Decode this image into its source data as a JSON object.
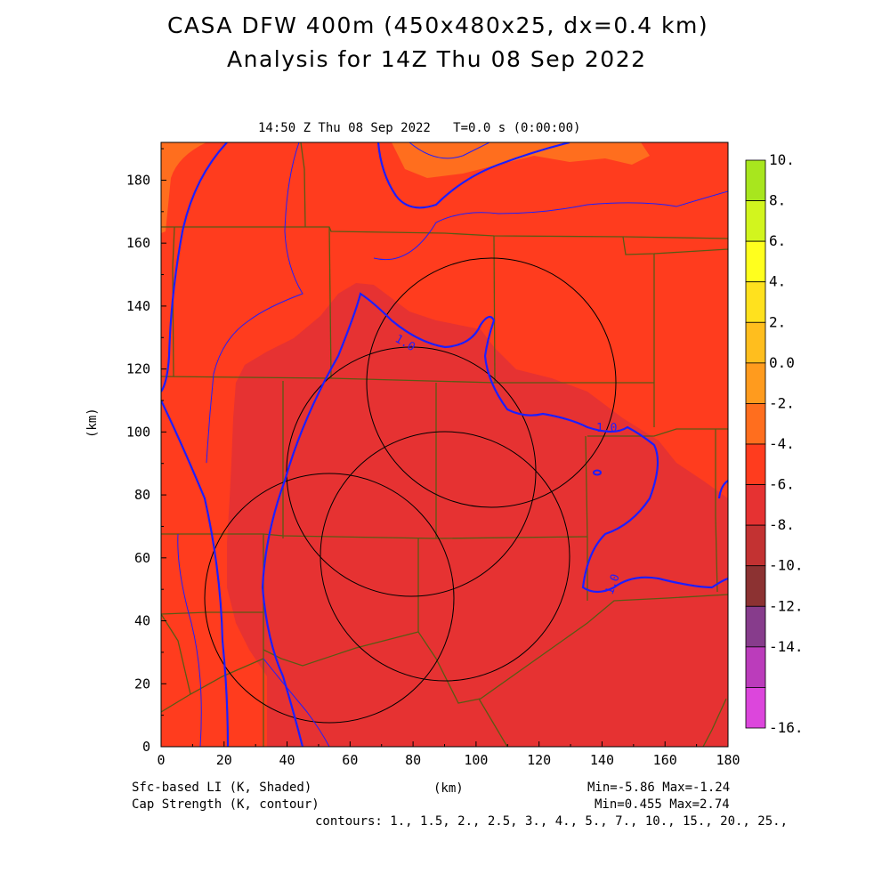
{
  "header": {
    "title_line1": "CASA DFW 400m (450x480x25, dx=0.4 km)",
    "title_line2": "Analysis for 14Z Thu 08 Sep 2022",
    "valid_time": "14:50 Z Thu 08 Sep 2022   T=0.0 s (0:00:00)"
  },
  "axes": {
    "x_label": "(km)",
    "y_label": "(km)",
    "x_ticks": [
      "0",
      "20",
      "40",
      "60",
      "80",
      "100",
      "120",
      "140",
      "160",
      "180"
    ],
    "y_ticks": [
      "0",
      "20",
      "40",
      "60",
      "80",
      "100",
      "120",
      "140",
      "160",
      "180"
    ],
    "x_range": [
      0,
      180
    ],
    "y_range": [
      0,
      192
    ]
  },
  "colorbar": {
    "labels": [
      "10.",
      "8.",
      "6.",
      "4.",
      "2.",
      "0.0",
      "-2.",
      "-4.",
      "-6.",
      "-8.",
      "-10.",
      "-12.",
      "-14.",
      "-16."
    ],
    "colors": [
      "#a8e61e",
      "#d2f51e",
      "#ffff1e",
      "#ffe11e",
      "#ffbe1e",
      "#ff9b1e",
      "#ff6e1e",
      "#ff3c1e",
      "#e63232",
      "#c33232",
      "#8c3232",
      "#873c8c",
      "#bb3cbb",
      "#dc46dc"
    ]
  },
  "footer": {
    "shaded_field": "Sfc-based LI (K, Shaded)",
    "contour_field": "Cap Strength (K, contour)",
    "x_unit": "(km)",
    "shaded_minmax": "Min=-5.86 Max=-1.24",
    "contour_minmax": "Min=0.455 Max=2.74",
    "contours": "contours: 1., 1.5, 2., 2.5, 3., 4., 5., 7., 10., 15., 20., 25.,"
  },
  "map": {
    "contour_labels": [
      "1.0",
      "1.0",
      "1.0"
    ],
    "field_colors": {
      "orange": "#ff6e1e",
      "red_orange": "#ff3c1e",
      "red": "#e63232",
      "contour_blue": "#1e1eff",
      "county_lines": "#5a5a14"
    }
  }
}
